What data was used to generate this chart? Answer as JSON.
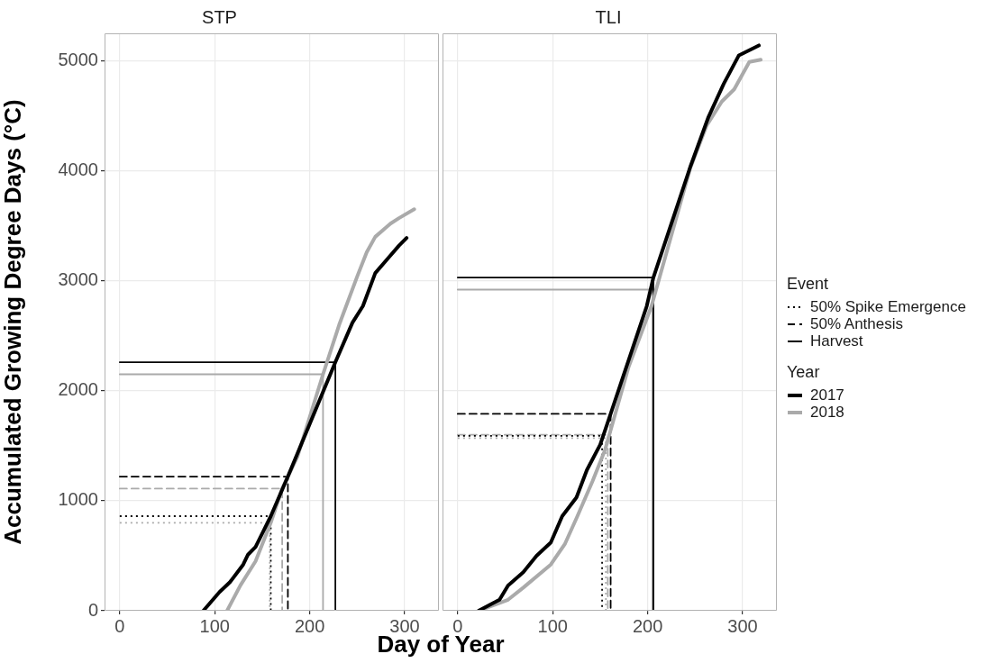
{
  "chart_data": [
    {
      "type": "line",
      "title": "STP",
      "xlabel": "Day of Year",
      "ylabel": "Accumulated Growing Degree Days (°C)",
      "xlim": [
        -16,
        336
      ],
      "xticks": [
        0,
        100,
        200,
        300
      ],
      "ylim": [
        0,
        5250
      ],
      "yticks": [
        0,
        1000,
        2000,
        3000,
        4000,
        5000
      ],
      "grid": true,
      "series": [
        {
          "color": "#000000",
          "x": [
            88,
            105,
            116,
            130,
            135,
            143,
            151,
            159,
            177,
            227,
            245,
            256,
            269,
            282,
            294,
            302
          ],
          "values": [
            0,
            170,
            260,
            420,
            510,
            580,
            720,
            860,
            1220,
            2260,
            2620,
            2770,
            3070,
            3200,
            3320,
            3390
          ]
        },
        {
          "color": "#aaaaaa",
          "x": [
            113,
            127,
            143,
            159,
            171,
            187,
            214,
            231,
            250,
            260,
            269,
            285,
            294,
            310
          ],
          "values": [
            0,
            230,
            450,
            800,
            1110,
            1400,
            2150,
            2600,
            3040,
            3260,
            3400,
            3520,
            3570,
            3650
          ]
        },
        {
          "color": "#000000",
          "line_style": "dotted",
          "x": [
            0,
            159,
            159
          ],
          "values": [
            860,
            860,
            0
          ]
        },
        {
          "color": "#aaaaaa",
          "line_style": "dotted",
          "x": [
            0,
            158,
            158
          ],
          "values": [
            800,
            800,
            0
          ]
        },
        {
          "color": "#000000",
          "line_style": "dashed",
          "x": [
            0,
            177,
            177
          ],
          "values": [
            1220,
            1220,
            0
          ]
        },
        {
          "color": "#aaaaaa",
          "line_style": "dashed",
          "x": [
            0,
            171,
            171
          ],
          "values": [
            1110,
            1110,
            0
          ]
        },
        {
          "color": "#000000",
          "line_style": "solid",
          "x": [
            0,
            227,
            227
          ],
          "values": [
            2260,
            2260,
            0
          ]
        },
        {
          "color": "#aaaaaa",
          "line_style": "solid",
          "x": [
            0,
            214,
            214
          ],
          "values": [
            2150,
            2150,
            0
          ]
        }
      ]
    },
    {
      "type": "line",
      "title": "TLI",
      "xlim": [
        -16,
        336
      ],
      "xticks": [
        0,
        100,
        200,
        300
      ],
      "ylim": [
        0,
        5250
      ],
      "yticks": [
        0,
        1000,
        2000,
        3000,
        4000,
        5000
      ],
      "grid": true,
      "tick_labels": "x",
      "legend": "right",
      "legend_title": "Event",
      "annotations": [
        "Year"
      ],
      "series": [
        {
          "color": "#000000",
          "line_style": "dotted",
          "name": "50% Spike Emergence",
          "x": [
            0,
            152,
            152
          ],
          "values": [
            1590,
            1590,
            0
          ]
        },
        {
          "color": "#000000",
          "line_style": "dashed",
          "name": "50% Anthesis",
          "x": [
            0,
            161,
            161
          ],
          "values": [
            1790,
            1790,
            0
          ]
        },
        {
          "color": "#000000",
          "line_style": "solid",
          "name": "Harvest",
          "x": [
            0,
            206,
            206
          ],
          "values": [
            3030,
            3030,
            0
          ]
        },
        {
          "color": "#aaaaaa",
          "line_style": "dotted",
          "x": [
            0,
            156,
            156
          ],
          "values": [
            1570,
            1570,
            0
          ]
        },
        {
          "color": "#aaaaaa",
          "line_style": "dashed",
          "x": [
            0,
            158,
            158
          ],
          "values": [
            1600,
            1600,
            0
          ]
        },
        {
          "color": "#aaaaaa",
          "line_style": "solid",
          "x": [
            0,
            205,
            205
          ],
          "values": [
            2920,
            2920,
            0
          ]
        },
        {
          "color": "#000000",
          "name": "2017",
          "x": [
            22,
            44,
            53,
            69,
            83,
            98,
            110,
            125,
            136,
            150,
            161,
            199,
            206,
            245,
            264,
            280,
            296,
            317
          ],
          "values": [
            0,
            100,
            230,
            350,
            500,
            620,
            860,
            1030,
            1280,
            1510,
            1790,
            2770,
            3030,
            4040,
            4490,
            4790,
            5050,
            5140
          ]
        },
        {
          "color": "#aaaaaa",
          "name": "2018",
          "x": [
            22,
            53,
            69,
            98,
            113,
            126,
            142,
            155,
            180,
            204,
            245,
            262,
            278,
            291,
            307,
            319
          ],
          "values": [
            0,
            100,
            210,
            420,
            610,
            860,
            1180,
            1460,
            2220,
            2770,
            4030,
            4410,
            4630,
            4740,
            4990,
            5010
          ]
        }
      ]
    }
  ]
}
